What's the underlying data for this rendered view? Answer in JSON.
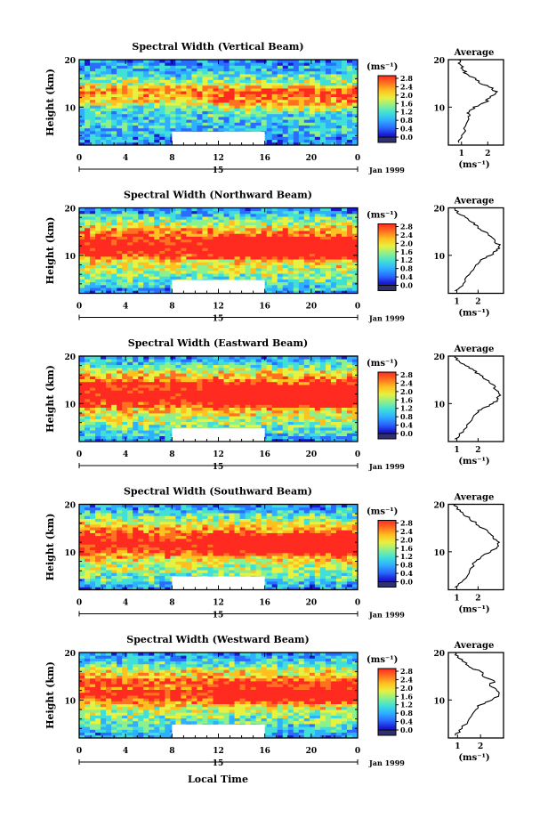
{
  "chart_data": {
    "type": "heatmap",
    "common": {
      "x_tick_labels": [
        "0",
        "4",
        "8",
        "12",
        "16",
        "20",
        "0"
      ],
      "xlim": [
        0,
        24
      ],
      "date_label": "15",
      "month_label": "Jan 1999",
      "ylabel": "Height (km)",
      "y_tick_labels": [
        "20",
        "10"
      ],
      "ylim": [
        2,
        20
      ],
      "colorbar_unit": "(ms⁻¹)",
      "colorbar_ticks": [
        "2.8",
        "2.4",
        "2.0",
        "1.6",
        "1.2",
        "0.8",
        "0.4",
        "0.0"
      ],
      "colorbar_range": [
        0.0,
        3.0
      ],
      "colorbar_colors": [
        "#303070",
        "#1a1ad0",
        "#2a6cff",
        "#2fb0ff",
        "#40e0d8",
        "#8cf08c",
        "#e8f040",
        "#ffc020",
        "#ff7020",
        "#ff2a20"
      ],
      "data_gap": {
        "x_from": 8,
        "x_to": 16,
        "y_from": 2,
        "y_to": 4.8
      },
      "profile_title": "Average",
      "profile_ylim": [
        2,
        20
      ],
      "profile_unit": "(ms⁻¹)",
      "xlabel": "Local Time"
    },
    "panels": [
      {
        "title": "Spectral Width (Vertical Beam)",
        "profile_xlim": [
          0.5,
          2.6
        ],
        "profile_xticks": [
          "1",
          "2"
        ],
        "profile_xtick_values": [
          1,
          2
        ],
        "profile": [
          [
            2.5,
            0.9
          ],
          [
            4,
            1.0
          ],
          [
            6,
            1.15
          ],
          [
            8,
            1.25
          ],
          [
            9,
            1.3
          ],
          [
            10,
            1.45
          ],
          [
            11,
            1.9
          ],
          [
            12,
            2.1
          ],
          [
            13,
            2.3
          ],
          [
            14,
            2.2
          ],
          [
            15,
            1.7
          ],
          [
            16,
            1.55
          ],
          [
            17,
            1.2
          ],
          [
            18,
            1.05
          ],
          [
            19,
            0.95
          ],
          [
            20,
            0.9
          ]
        ]
      },
      {
        "title": "Spectral Width (Northward Beam)",
        "profile_xlim": [
          0.6,
          3.2
        ],
        "profile_xticks": [
          "1",
          "2"
        ],
        "profile_xtick_values": [
          1,
          2
        ],
        "profile": [
          [
            2.5,
            0.9
          ],
          [
            4,
            1.3
          ],
          [
            6,
            1.6
          ],
          [
            8,
            1.9
          ],
          [
            9,
            2.1
          ],
          [
            10,
            2.6
          ],
          [
            11,
            2.9
          ],
          [
            12,
            3.0
          ],
          [
            13,
            2.8
          ],
          [
            14,
            2.6
          ],
          [
            15,
            2.3
          ],
          [
            16,
            2.0
          ],
          [
            17,
            1.7
          ],
          [
            18,
            1.4
          ],
          [
            19,
            1.0
          ],
          [
            20,
            0.9
          ]
        ]
      },
      {
        "title": "Spectral Width (Eastward Beam)",
        "profile_xlim": [
          0.6,
          3.2
        ],
        "profile_xticks": [
          "1",
          "2"
        ],
        "profile_xtick_values": [
          1,
          2
        ],
        "profile": [
          [
            2.5,
            0.9
          ],
          [
            4,
            1.3
          ],
          [
            6,
            1.6
          ],
          [
            8,
            1.95
          ],
          [
            9,
            2.2
          ],
          [
            10,
            2.7
          ],
          [
            11,
            2.95
          ],
          [
            12,
            3.0
          ],
          [
            13,
            2.8
          ],
          [
            14,
            2.7
          ],
          [
            15,
            2.4
          ],
          [
            16,
            2.1
          ],
          [
            17,
            1.8
          ],
          [
            18,
            1.4
          ],
          [
            19,
            1.1
          ],
          [
            20,
            0.9
          ]
        ]
      },
      {
        "title": "Spectral Width (Southward Beam)",
        "profile_xlim": [
          0.6,
          3.2
        ],
        "profile_xticks": [
          "1",
          "2"
        ],
        "profile_xtick_values": [
          1,
          2
        ],
        "profile": [
          [
            2.5,
            0.9
          ],
          [
            4,
            1.3
          ],
          [
            6,
            1.6
          ],
          [
            8,
            1.9
          ],
          [
            9,
            2.15
          ],
          [
            10,
            2.6
          ],
          [
            11,
            2.9
          ],
          [
            12,
            3.0
          ],
          [
            13,
            2.7
          ],
          [
            14,
            2.5
          ],
          [
            15,
            2.2
          ],
          [
            16,
            1.9
          ],
          [
            17,
            1.6
          ],
          [
            18,
            1.3
          ],
          [
            19,
            1.0
          ],
          [
            20,
            0.9
          ]
        ]
      },
      {
        "title": "Spectral Width (Westward Beam)",
        "profile_xlim": [
          0.6,
          3.0
        ],
        "profile_xticks": [
          "1",
          "2"
        ],
        "profile_xtick_values": [
          1,
          2
        ],
        "profile": [
          [
            2.5,
            0.9
          ],
          [
            4,
            1.2
          ],
          [
            6,
            1.5
          ],
          [
            8,
            1.8
          ],
          [
            9,
            2.0
          ],
          [
            10,
            2.5
          ],
          [
            11,
            2.8
          ],
          [
            12,
            2.7
          ],
          [
            13,
            2.4
          ],
          [
            14,
            2.6
          ],
          [
            15,
            2.1
          ],
          [
            16,
            2.0
          ],
          [
            17,
            1.5
          ],
          [
            18,
            1.3
          ],
          [
            19,
            1.0
          ],
          [
            20,
            0.9
          ]
        ]
      }
    ]
  }
}
